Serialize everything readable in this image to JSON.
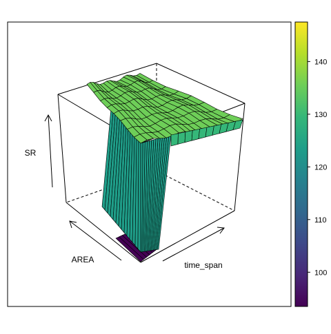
{
  "chart_data": {
    "type": "surface3d",
    "title": "",
    "axes": {
      "x": {
        "label": "time_span"
      },
      "y": {
        "label": "AREA"
      },
      "z": {
        "label": "SR"
      }
    },
    "surface": {
      "description_levels": {
        "low_plateau": 96,
        "cliff_base": 118,
        "cliff_mid": 124,
        "high_plateau": 133,
        "high_plateau_max": 138
      }
    },
    "colorbar": {
      "min": 93.5,
      "max": 147.5,
      "ticks": [
        100,
        110,
        120,
        130,
        140
      ],
      "palette": [
        "#440154",
        "#482878",
        "#3e4989",
        "#31688e",
        "#26828e",
        "#1f9e89",
        "#35b779",
        "#6ece58",
        "#b5de2b",
        "#fde725"
      ]
    },
    "grid": false,
    "legend": "right"
  }
}
